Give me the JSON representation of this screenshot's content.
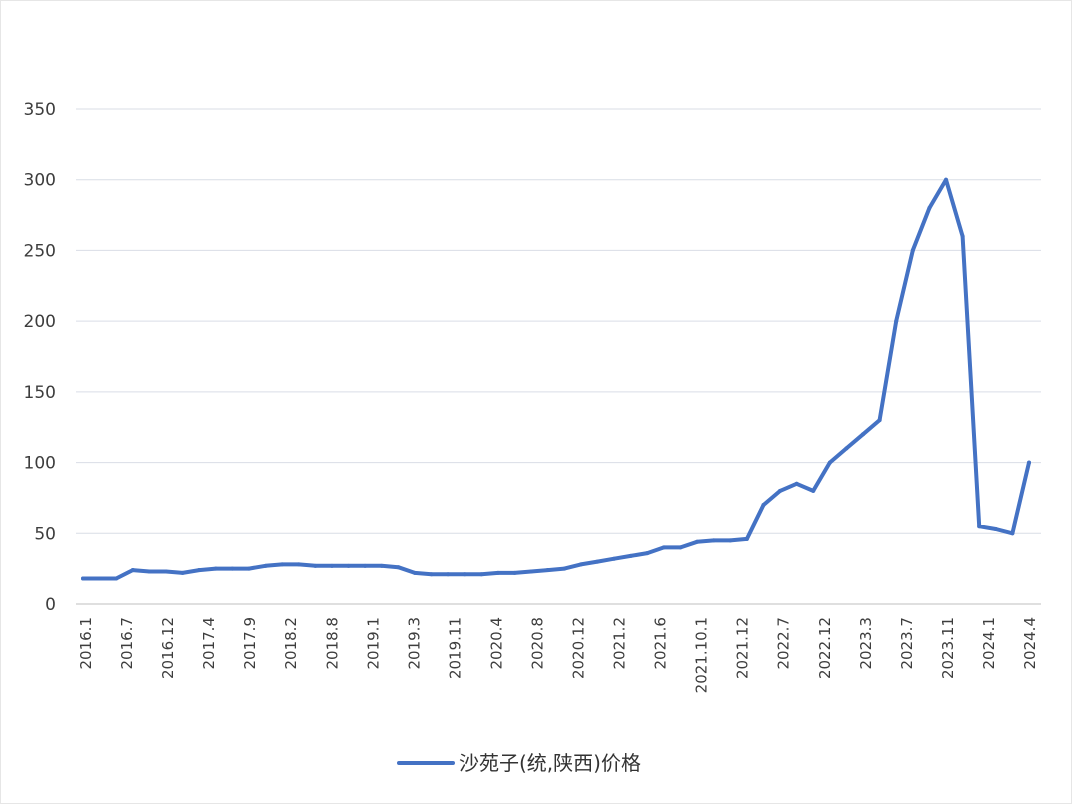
{
  "chart_data": {
    "type": "line",
    "title": "",
    "xlabel": "",
    "ylabel": "",
    "ylim": [
      0,
      350
    ],
    "yticks": [
      0,
      50,
      100,
      150,
      200,
      250,
      300,
      350
    ],
    "grid": true,
    "legend_position": "bottom",
    "color": "#4472c4",
    "x_tick_labels": [
      "2016.1",
      "2016.7",
      "2016.12",
      "2017.4",
      "2017.9",
      "2018.2",
      "2018.8",
      "2019.1",
      "2019.3",
      "2019.11",
      "2020.4",
      "2020.8",
      "2020.12",
      "2021.2",
      "2021.6",
      "2021.10.1",
      "2021.12",
      "2022.7",
      "2022.12",
      "2023.3",
      "2023.7",
      "2023.11",
      "2024.1",
      "2024.4"
    ],
    "series": [
      {
        "name": "沙苑子(统,陕西)价格",
        "values": [
          18,
          18,
          18,
          24,
          23,
          23,
          22,
          24,
          25,
          25,
          25,
          27,
          28,
          28,
          27,
          27,
          27,
          27,
          27,
          26,
          22,
          21,
          21,
          21,
          21,
          22,
          22,
          23,
          24,
          25,
          28,
          30,
          32,
          34,
          36,
          40,
          40,
          44,
          45,
          45,
          46,
          70,
          80,
          85,
          80,
          100,
          110,
          120,
          130,
          200,
          250,
          280,
          300,
          260,
          55,
          53,
          50,
          100
        ]
      }
    ]
  }
}
